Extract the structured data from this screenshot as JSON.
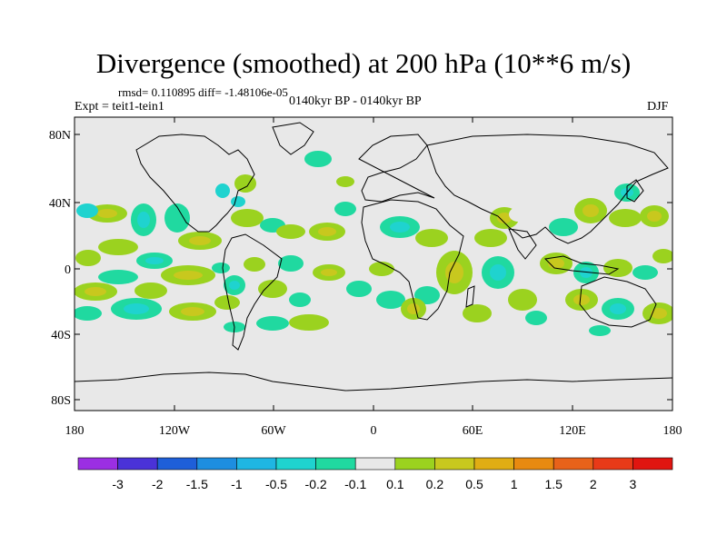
{
  "title": "Divergence (smoothed) at 200 hPa (10**6 m/s)",
  "stats": "rmsd= 0.110895 diff= -1.48106e-05",
  "expt": "Expt = teit1-tein1",
  "period": "0140kyr BP - 0140kyr BP",
  "season": "DJF",
  "lat_ticks": [
    "80N",
    "40N",
    "0",
    "40S",
    "80S"
  ],
  "lon_ticks": [
    "180",
    "120W",
    "60W",
    "0",
    "60E",
    "120E",
    "180"
  ],
  "colorbar": {
    "labels": [
      "-3",
      "-2",
      "-1.5",
      "-1",
      "-0.5",
      "-0.2",
      "-0.1",
      "0.1",
      "0.2",
      "0.5",
      "1",
      "1.5",
      "2",
      "3"
    ],
    "colors": [
      "#9b2fe3",
      "#4a32d8",
      "#1e5fd9",
      "#1d8ee0",
      "#1fb6e3",
      "#1fd3cf",
      "#20d9a0",
      "#e8e8e8",
      "#9bd21f",
      "#c8c81e",
      "#e0ad14",
      "#e88a10",
      "#e8621a",
      "#e83a18",
      "#e01510"
    ]
  },
  "colors": {
    "background_field": "#e8e8e8",
    "positive_weak": "#9bd21f",
    "positive_mid": "#c8c81e",
    "negative_weak": "#20d9a0",
    "negative_mid": "#1fd3cf"
  }
}
